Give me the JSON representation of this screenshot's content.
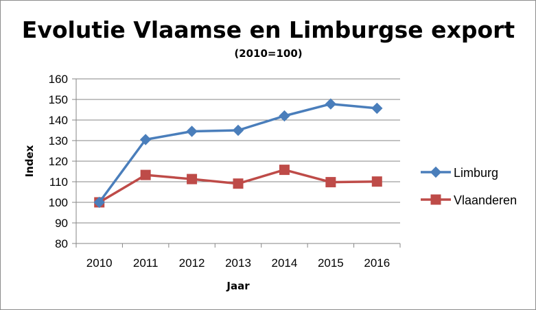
{
  "chart_data": {
    "type": "line",
    "title": "Evolutie Vlaamse en Limburgse export",
    "subtitle": "(2010=100)",
    "xlabel": "Jaar",
    "ylabel": "Index",
    "categories": [
      "2010",
      "2011",
      "2012",
      "2013",
      "2014",
      "2015",
      "2016"
    ],
    "ylim": [
      80,
      160
    ],
    "yticks": [
      80,
      90,
      100,
      110,
      120,
      130,
      140,
      150,
      160
    ],
    "grid": "horizontal",
    "legend": "right",
    "series": [
      {
        "name": "Limburg",
        "color": "#4a7ebb",
        "marker": "diamond",
        "values": [
          100,
          130.5,
          134.5,
          135,
          142,
          147.8,
          145.7
        ]
      },
      {
        "name": "Vlaanderen",
        "color": "#be4b48",
        "marker": "square",
        "values": [
          100,
          113.3,
          111.3,
          109.1,
          115.8,
          109.8,
          110.1
        ]
      }
    ]
  }
}
